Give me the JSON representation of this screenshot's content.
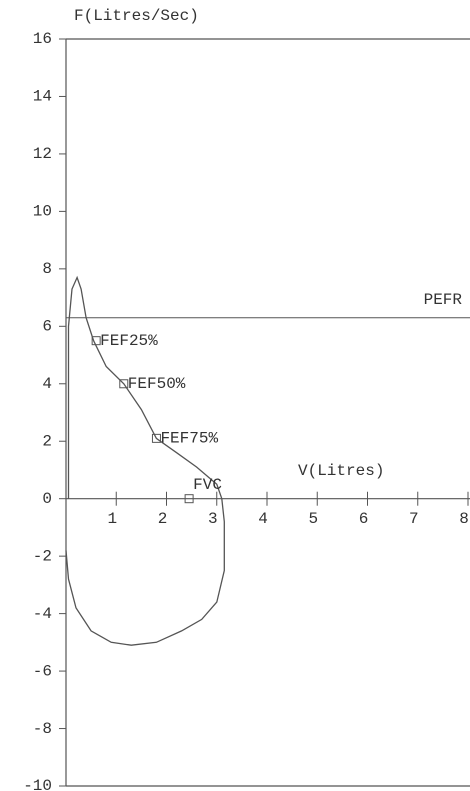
{
  "chart_data": {
    "type": "line",
    "y_label": "F(Litres/Sec)",
    "x_label": "V(Litres)",
    "xlim": [
      0,
      8
    ],
    "xticks": [
      1,
      2,
      3,
      4,
      5,
      6,
      7,
      8
    ],
    "ylim": [
      -10,
      16
    ],
    "yticks": [
      -10,
      -8,
      -6,
      -4,
      -2,
      0,
      2,
      4,
      6,
      8,
      10,
      12,
      14,
      16
    ],
    "grid": false,
    "series": [
      {
        "color": "#555555",
        "x": [
          0.05,
          0.05,
          0.12,
          0.22,
          0.3,
          0.4,
          0.55,
          0.8,
          1.15,
          1.5,
          1.8,
          2.2,
          2.6,
          3.0,
          3.1,
          3.15,
          3.15,
          3.0,
          2.7,
          2.3,
          1.8,
          1.3,
          0.9,
          0.5,
          0.2,
          0.05,
          0.0
        ],
        "values": [
          0,
          6.0,
          7.3,
          7.7,
          7.3,
          6.3,
          5.5,
          4.6,
          4.0,
          3.1,
          2.1,
          1.6,
          1.1,
          0.5,
          0,
          -0.8,
          -2.5,
          -3.6,
          -4.2,
          -4.6,
          -5.0,
          -5.1,
          -5.0,
          -4.6,
          -3.8,
          -2.8,
          -1.8
        ]
      }
    ],
    "reference_line": {
      "label": "PEFR",
      "value": 6.3
    },
    "points": [
      {
        "label": "FEF25%",
        "x": 0.6,
        "y": 5.5
      },
      {
        "label": "FEF50%",
        "x": 1.15,
        "y": 4.0
      },
      {
        "label": "FEF75%",
        "x": 1.8,
        "y": 2.1
      },
      {
        "label": "FVC",
        "x": 2.45,
        "y": 0
      }
    ]
  }
}
